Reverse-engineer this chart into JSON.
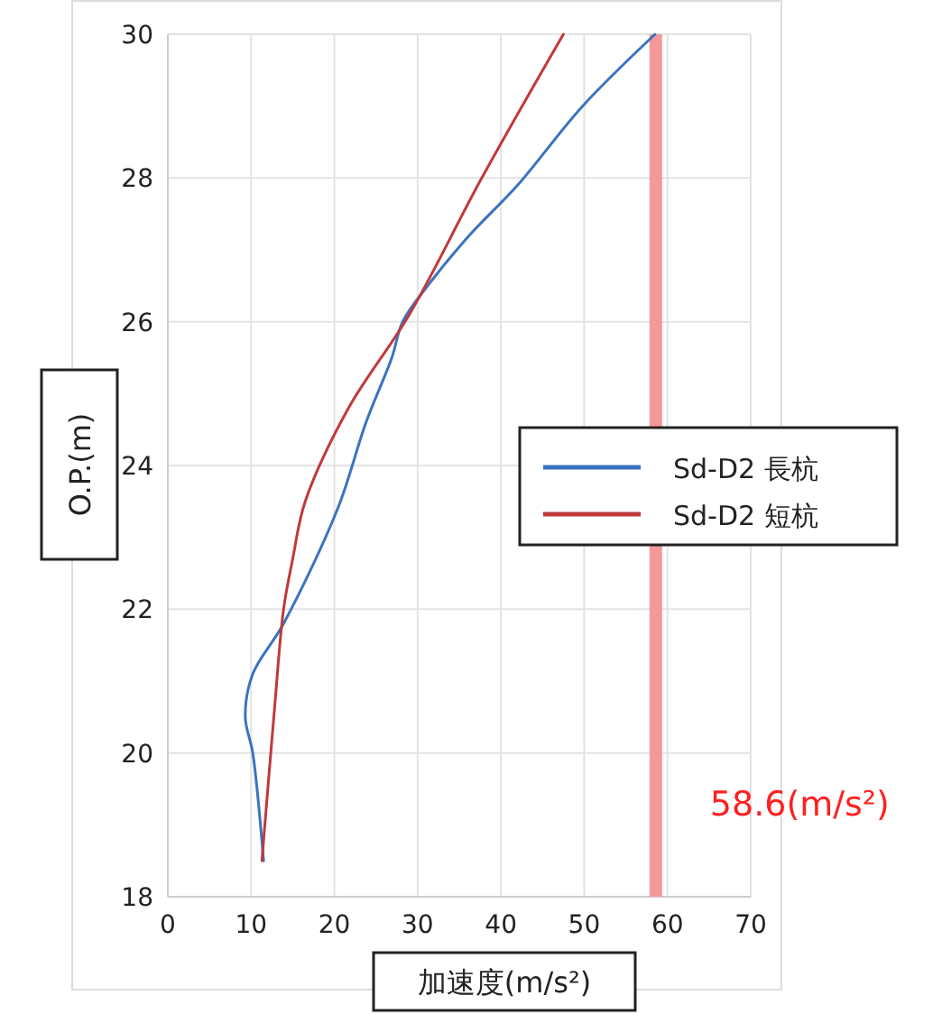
{
  "chart_data": {
    "type": "line",
    "xlabel": "加速度(m/s²)",
    "ylabel": "O.P.(m)",
    "xlim": [
      0,
      70
    ],
    "xticks": [
      0,
      10,
      20,
      30,
      40,
      50,
      60,
      70
    ],
    "ylim": [
      18,
      30
    ],
    "yticks": [
      18,
      20,
      22,
      24,
      26,
      28,
      30
    ],
    "grid": true,
    "legend": "right",
    "marker": "none",
    "line_style": "solid",
    "series": [
      {
        "name": "Sd-D2 長杭",
        "color": "#3b73c0",
        "x": [
          11.5,
          10.2,
          9.3,
          10.2,
          13.9,
          20.4,
          23.8,
          26.9,
          28.2,
          31.2,
          36.2,
          42.0,
          49.8,
          58.5
        ],
        "values": [
          18.5,
          20.0,
          20.5,
          21.1,
          21.8,
          23.4,
          24.6,
          25.5,
          26.0,
          26.5,
          27.2,
          27.9,
          29.0,
          30.0
        ]
      },
      {
        "name": "Sd-D2 短杭",
        "color": "#c0393b",
        "x": [
          11.3,
          12.8,
          13.9,
          15.0,
          16.5,
          21.7,
          29.0,
          37.7,
          47.5
        ],
        "values": [
          18.5,
          20.6,
          22.0,
          22.7,
          23.5,
          24.8,
          26.1,
          28.0,
          30.0
        ]
      }
    ],
    "ref_lines": [
      {
        "axis": "x",
        "value": 58.6,
        "label": "58.6(m/s²)",
        "color": "#f4999b"
      }
    ]
  }
}
